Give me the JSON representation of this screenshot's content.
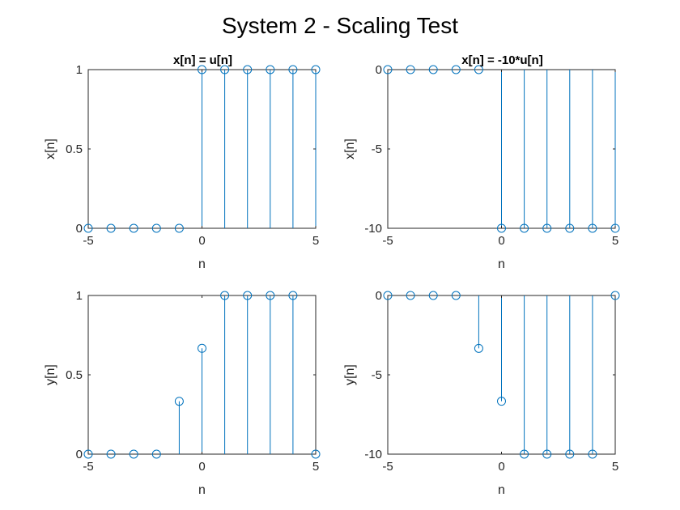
{
  "figure": {
    "title": "System 2 - Scaling Test"
  },
  "chart_data": [
    {
      "type": "stem",
      "title": "x[n] = u[n]",
      "xlabel": "n",
      "ylabel": "x[n]",
      "xlim": [
        -5,
        5
      ],
      "ylim": [
        0,
        1
      ],
      "x_ticks": [
        "-5",
        "0",
        "5"
      ],
      "y_ticks": [
        "0",
        "0.5",
        "1"
      ],
      "x": [
        -5,
        -4,
        -3,
        -2,
        -1,
        0,
        1,
        2,
        3,
        4,
        5
      ],
      "y": [
        0,
        0,
        0,
        0,
        0,
        1,
        1,
        1,
        1,
        1,
        1
      ],
      "color": "#0072BD",
      "grid": false
    },
    {
      "type": "stem",
      "title": "x[n] = -10*u[n]",
      "xlabel": "n",
      "ylabel": "x[n]",
      "xlim": [
        -5,
        5
      ],
      "ylim": [
        -10,
        0
      ],
      "x_ticks": [
        "-5",
        "0",
        "5"
      ],
      "y_ticks": [
        "-10",
        "-5",
        "0"
      ],
      "x": [
        -5,
        -4,
        -3,
        -2,
        -1,
        0,
        1,
        2,
        3,
        4,
        5
      ],
      "y": [
        0,
        0,
        0,
        0,
        0,
        -10,
        -10,
        -10,
        -10,
        -10,
        -10
      ],
      "color": "#0072BD",
      "grid": false
    },
    {
      "type": "stem",
      "title": "",
      "xlabel": "n",
      "ylabel": "y[n]",
      "xlim": [
        -5,
        5
      ],
      "ylim": [
        0,
        1
      ],
      "x_ticks": [
        "-5",
        "0",
        "5"
      ],
      "y_ticks": [
        "0",
        "0.5",
        "1"
      ],
      "x": [
        -5,
        -4,
        -3,
        -2,
        -1,
        0,
        1,
        2,
        3,
        4,
        5
      ],
      "y": [
        0,
        0,
        0,
        0,
        0.333,
        0.667,
        1,
        1,
        1,
        1,
        0
      ],
      "color": "#0072BD",
      "grid": false
    },
    {
      "type": "stem",
      "title": "",
      "xlabel": "n",
      "ylabel": "y[n]",
      "xlim": [
        -5,
        5
      ],
      "ylim": [
        -10,
        0
      ],
      "x_ticks": [
        "-5",
        "0",
        "5"
      ],
      "y_ticks": [
        "-10",
        "-5",
        "0"
      ],
      "x": [
        -5,
        -4,
        -3,
        -2,
        -1,
        0,
        1,
        2,
        3,
        4,
        5
      ],
      "y": [
        0,
        0,
        0,
        0,
        -3.333,
        -6.667,
        -10,
        -10,
        -10,
        -10,
        0
      ],
      "color": "#0072BD",
      "grid": false
    }
  ]
}
